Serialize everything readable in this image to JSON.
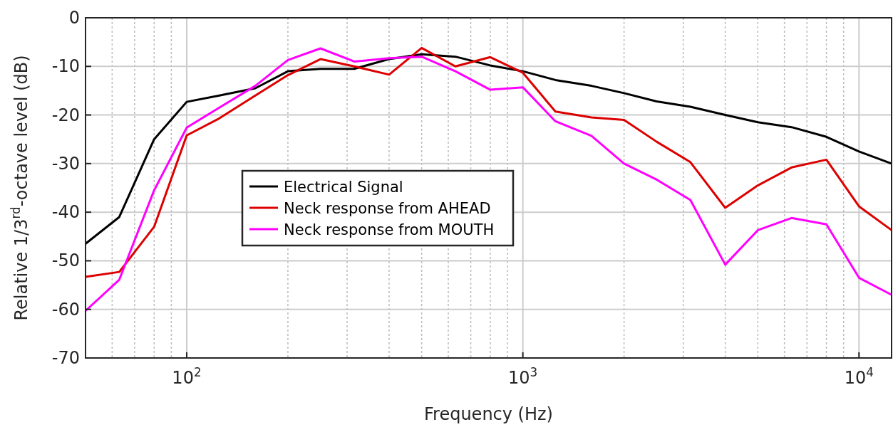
{
  "chart_data": {
    "type": "line",
    "xlabel": "Frequency (Hz)",
    "ylabel": "Relative 1/3$^{rd}$-octave level (dB)",
    "x": [
      50,
      63,
      80,
      100,
      125,
      160,
      200,
      250,
      315,
      400,
      500,
      630,
      800,
      1000,
      1250,
      1600,
      2000,
      2500,
      3150,
      4000,
      5000,
      6300,
      8000,
      10000,
      12500
    ],
    "series": [
      {
        "name": "Electrical Signal",
        "color": "#000000",
        "values": [
          -46.5,
          -41,
          -25,
          -17.3,
          -16,
          -14.5,
          -11,
          -10.5,
          -10.5,
          -8.5,
          -7.5,
          -8,
          -9.8,
          -11,
          -12.8,
          -14,
          -15.5,
          -17.2,
          -18.3,
          -20,
          -21.5,
          -22.5,
          -24.5,
          -27.5,
          -30
        ]
      },
      {
        "name": "Neck response from AHEAD",
        "color": "#dd0000",
        "values": [
          -53.3,
          -52.3,
          -43,
          -24.2,
          -20.7,
          -16,
          -11.8,
          -8.5,
          -10,
          -11.7,
          -6.2,
          -10,
          -8.1,
          -11.3,
          -19.3,
          -20.5,
          -21,
          -25.5,
          -29.7,
          -39.1,
          -34.5,
          -30.8,
          -29.2,
          -38.8,
          -43.7
        ]
      },
      {
        "name": "Neck response from MOUTH",
        "color": "#ff00ff",
        "values": [
          -60.3,
          -53.9,
          -35.5,
          -22.6,
          -18.5,
          -14,
          -8.7,
          -6.3,
          -9,
          -8.3,
          -8,
          -11,
          -14.8,
          -14.3,
          -21.3,
          -24.3,
          -30,
          -33.3,
          -37.5,
          -50.8,
          -43.7,
          -41.2,
          -42.5,
          -53.5,
          -57
        ]
      }
    ],
    "log": "x",
    "xlim": [
      50,
      12500
    ],
    "xticks": [
      {
        "value": 100,
        "label": "10$^{2}$"
      },
      {
        "value": 1000,
        "label": "10$^{3}$"
      },
      {
        "value": 10000,
        "label": "10$^{4}$"
      }
    ],
    "ylim": [
      -70,
      0
    ],
    "yticks": [
      -70,
      -60,
      -50,
      -40,
      -30,
      -20,
      -10,
      0
    ],
    "grid": true,
    "legend": "left",
    "line_style": "solid"
  }
}
